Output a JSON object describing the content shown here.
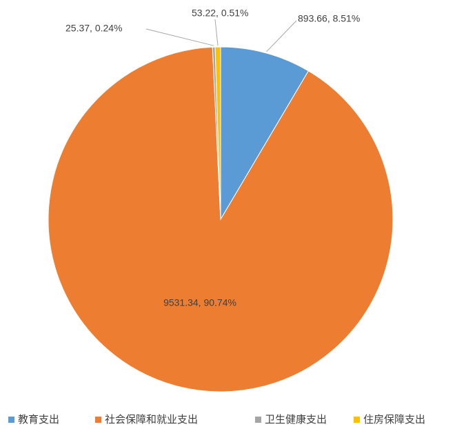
{
  "chart_data": {
    "type": "pie",
    "categories": [
      "教育支出",
      "社会保障和就业支出",
      "卫生健康支出",
      "住房保障支出"
    ],
    "values": [
      893.66,
      9531.34,
      25.37,
      53.22
    ],
    "value_labels": [
      "893.66, 8.51%",
      "9531.34, 90.74%",
      "25.37, 0.24%",
      "53.22, 0.51%"
    ],
    "colors": [
      "#5b9bd5",
      "#ed7d31",
      "#a5a5a5",
      "#ffc000"
    ],
    "legend": "bottom"
  }
}
